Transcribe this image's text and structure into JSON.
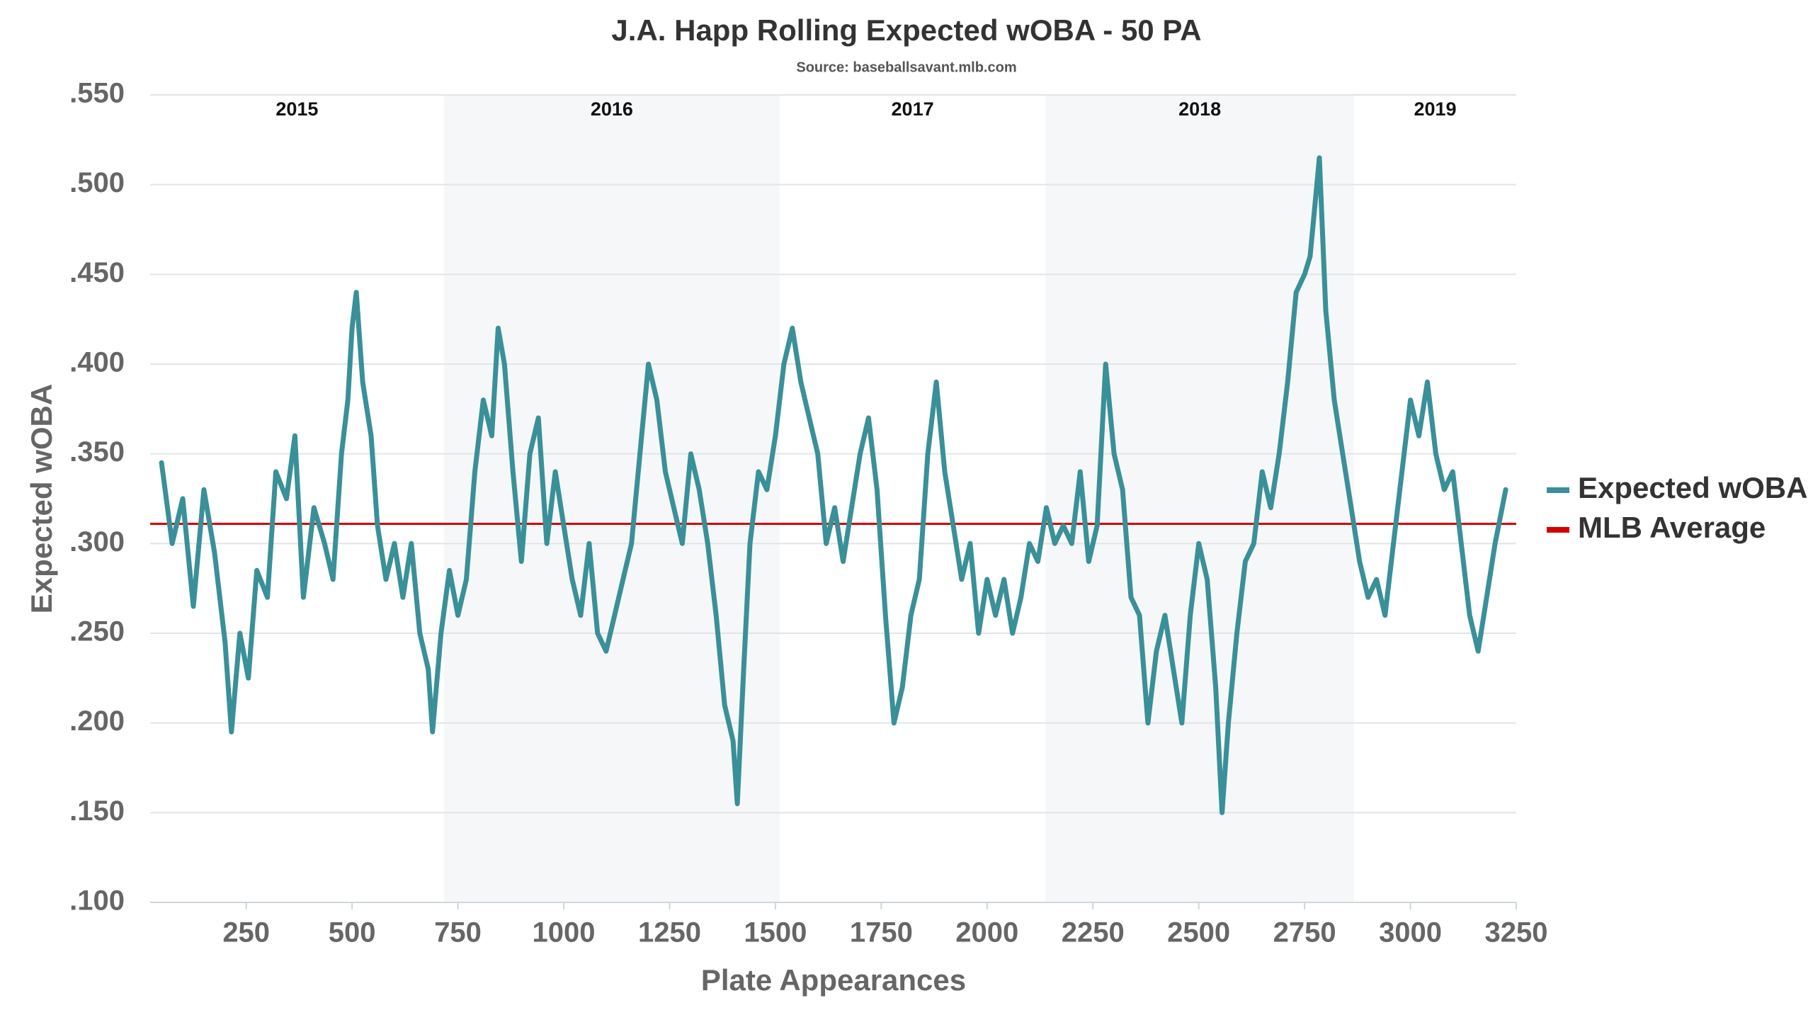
{
  "chart_data": {
    "type": "line",
    "title": "J.A. Happ Rolling Expected wOBA - 50 PA",
    "subtitle": "Source: baseballsavant.mlb.com",
    "x_label": "Plate Appearances",
    "y_label": "Expected wOBA",
    "xlim": [
      23,
      3250
    ],
    "ylim": [
      0.1,
      0.55
    ],
    "xticks": [
      250,
      500,
      750,
      1000,
      1250,
      1500,
      1750,
      2000,
      2250,
      2500,
      2750,
      3000,
      3250
    ],
    "yticks": [
      {
        "value": 0.1,
        "label": ".100"
      },
      {
        "value": 0.15,
        "label": ".150"
      },
      {
        "value": 0.2,
        "label": ".200"
      },
      {
        "value": 0.25,
        "label": ".250"
      },
      {
        "value": 0.3,
        "label": ".300"
      },
      {
        "value": 0.35,
        "label": ".350"
      },
      {
        "value": 0.4,
        "label": ".400"
      },
      {
        "value": 0.45,
        "label": ".450"
      },
      {
        "value": 0.5,
        "label": ".500"
      },
      {
        "value": 0.55,
        "label": ".550"
      }
    ],
    "grid": true,
    "legend": "right",
    "seasons": [
      {
        "label": "2015",
        "start": 23,
        "end": 717,
        "shaded": false
      },
      {
        "label": "2016",
        "start": 717,
        "end": 1510,
        "shaded": true
      },
      {
        "label": "2017",
        "start": 1510,
        "end": 2138,
        "shaded": false
      },
      {
        "label": "2018",
        "start": 2138,
        "end": 2867,
        "shaded": true
      },
      {
        "label": "2019",
        "start": 2867,
        "end": 3250,
        "shaded": false
      }
    ],
    "reference_line": {
      "name": "MLB Average",
      "value": 0.311,
      "color": "#d40000"
    },
    "x": [
      50,
      75,
      100,
      125,
      150,
      175,
      200,
      215,
      235,
      255,
      275,
      300,
      320,
      345,
      365,
      385,
      410,
      435,
      455,
      475,
      490,
      500,
      510,
      525,
      545,
      560,
      580,
      600,
      620,
      640,
      660,
      680,
      690,
      710,
      730,
      750,
      770,
      790,
      810,
      830,
      845,
      860,
      880,
      900,
      920,
      940,
      960,
      980,
      1000,
      1020,
      1040,
      1060,
      1080,
      1100,
      1120,
      1140,
      1160,
      1180,
      1200,
      1220,
      1240,
      1260,
      1280,
      1300,
      1320,
      1340,
      1360,
      1380,
      1400,
      1410,
      1425,
      1440,
      1460,
      1480,
      1500,
      1520,
      1540,
      1560,
      1580,
      1600,
      1620,
      1640,
      1660,
      1680,
      1700,
      1720,
      1740,
      1760,
      1780,
      1800,
      1820,
      1840,
      1860,
      1880,
      1900,
      1920,
      1940,
      1960,
      1980,
      2000,
      2020,
      2040,
      2060,
      2080,
      2100,
      2120,
      2140,
      2160,
      2180,
      2200,
      2220,
      2240,
      2260,
      2280,
      2300,
      2320,
      2340,
      2360,
      2380,
      2400,
      2420,
      2440,
      2460,
      2480,
      2500,
      2520,
      2540,
      2555,
      2570,
      2590,
      2610,
      2630,
      2650,
      2670,
      2690,
      2710,
      2730,
      2750,
      2763,
      2785,
      2800,
      2820,
      2840,
      2860,
      2880,
      2900,
      2920,
      2940,
      2960,
      2980,
      3000,
      3020,
      3040,
      3060,
      3080,
      3100,
      3120,
      3140,
      3160,
      3180,
      3200,
      3225
    ],
    "series": [
      {
        "name": "Expected wOBA",
        "color": "#3a9098",
        "values": [
          0.345,
          0.3,
          0.325,
          0.265,
          0.33,
          0.295,
          0.245,
          0.195,
          0.25,
          0.225,
          0.285,
          0.27,
          0.34,
          0.325,
          0.36,
          0.27,
          0.32,
          0.3,
          0.28,
          0.35,
          0.38,
          0.42,
          0.44,
          0.39,
          0.36,
          0.31,
          0.28,
          0.3,
          0.27,
          0.3,
          0.25,
          0.23,
          0.195,
          0.25,
          0.285,
          0.26,
          0.28,
          0.34,
          0.38,
          0.36,
          0.42,
          0.4,
          0.34,
          0.29,
          0.35,
          0.37,
          0.3,
          0.34,
          0.31,
          0.28,
          0.26,
          0.3,
          0.25,
          0.24,
          0.26,
          0.28,
          0.3,
          0.35,
          0.4,
          0.38,
          0.34,
          0.32,
          0.3,
          0.35,
          0.33,
          0.3,
          0.26,
          0.21,
          0.19,
          0.155,
          0.23,
          0.3,
          0.34,
          0.33,
          0.36,
          0.4,
          0.42,
          0.39,
          0.37,
          0.35,
          0.3,
          0.32,
          0.29,
          0.32,
          0.35,
          0.37,
          0.33,
          0.26,
          0.2,
          0.22,
          0.26,
          0.28,
          0.35,
          0.39,
          0.34,
          0.31,
          0.28,
          0.3,
          0.25,
          0.28,
          0.26,
          0.28,
          0.25,
          0.27,
          0.3,
          0.29,
          0.32,
          0.3,
          0.31,
          0.3,
          0.34,
          0.29,
          0.31,
          0.4,
          0.35,
          0.33,
          0.27,
          0.26,
          0.2,
          0.24,
          0.26,
          0.23,
          0.2,
          0.26,
          0.3,
          0.28,
          0.22,
          0.15,
          0.2,
          0.25,
          0.29,
          0.3,
          0.34,
          0.32,
          0.35,
          0.39,
          0.44,
          0.45,
          0.46,
          0.515,
          0.43,
          0.38,
          0.35,
          0.32,
          0.29,
          0.27,
          0.28,
          0.26,
          0.3,
          0.34,
          0.38,
          0.36,
          0.39,
          0.35,
          0.33,
          0.34,
          0.3,
          0.26,
          0.24,
          0.27,
          0.3,
          0.33
        ]
      }
    ]
  }
}
